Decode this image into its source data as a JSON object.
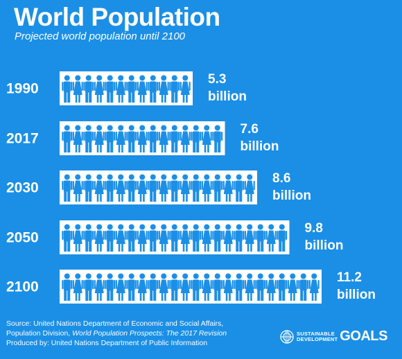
{
  "title": "World Population",
  "subtitle": "Projected world population until 2100",
  "chart_data": {
    "type": "bar",
    "title": "World Population",
    "subtitle": "Projected world population until 2100",
    "categories": [
      "1990",
      "2017",
      "2030",
      "2050",
      "2100"
    ],
    "values": [
      5.3,
      7.6,
      8.6,
      9.8,
      11.2
    ],
    "value_labels": [
      {
        "value": "5.3",
        "unit": "billion"
      },
      {
        "value": "7.6",
        "unit": "billion"
      },
      {
        "value": "8.6",
        "unit": "billion"
      },
      {
        "value": "9.8",
        "unit": "billion"
      },
      {
        "value": "11.2",
        "unit": "billion"
      }
    ],
    "people_icons": [
      12,
      15,
      18,
      21,
      24
    ],
    "unit": "billion",
    "bar_color": "#ffffff",
    "icon_color": "#1b8fe6"
  },
  "footer": {
    "line1": "Source: United Nations Department of Economic and Social Affairs,",
    "line2_prefix": "Population Division, ",
    "line2_italic": "World Population Prospects: The 2017 Revision",
    "line3": "Produced by: United Nations Department of Public Information"
  },
  "logo": {
    "line1": "SUSTAINABLE",
    "line2": "DEVELOPMENT",
    "goals": "GOALS"
  },
  "colors": {
    "background": "#1b8fe6",
    "text": "#ffffff"
  }
}
